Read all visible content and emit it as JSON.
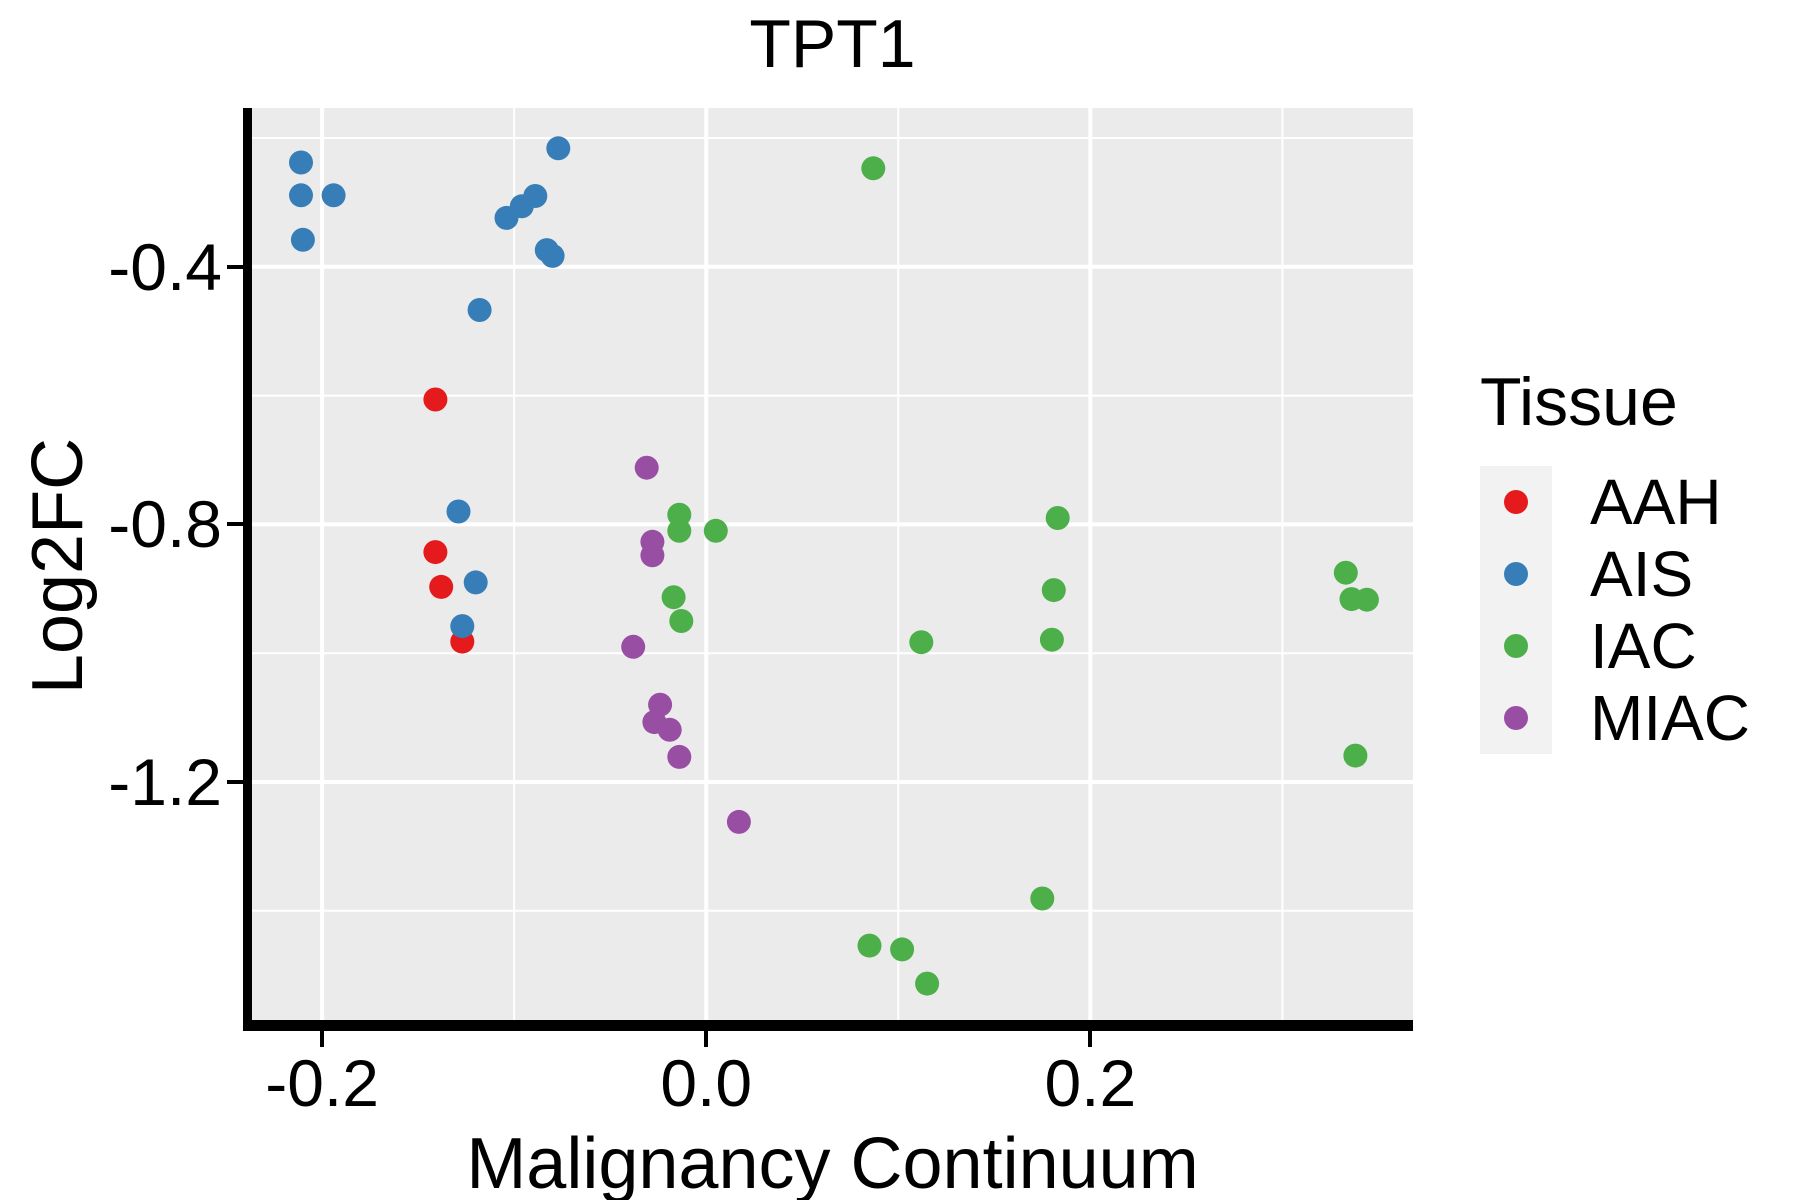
{
  "chart_data": {
    "type": "scatter",
    "title": "TPT1",
    "xlabel": "Malignancy Continuum",
    "ylabel": "Log2FC",
    "legend_title": "Tissue",
    "legend_position": "right",
    "grid": true,
    "panel_background": "#EBEBEB",
    "gridline_color": "#FFFFFF",
    "axis": {
      "xlim": [
        -0.2365,
        0.368
      ],
      "ylim": [
        -1.5696,
        -0.1534
      ],
      "x_ticks": [
        {
          "value": -0.2,
          "label": "-0.2"
        },
        {
          "value": 0.0,
          "label": "0.0"
        },
        {
          "value": 0.2,
          "label": "0.2"
        }
      ],
      "y_ticks": [
        {
          "value": -0.4,
          "label": "-0.4"
        },
        {
          "value": -0.8,
          "label": "-0.8"
        },
        {
          "value": -1.2,
          "label": "-1.2"
        }
      ],
      "x_minor": [
        -0.1,
        0.1,
        0.3
      ],
      "y_minor": [
        -0.2,
        -0.6,
        -1.0,
        -1.4
      ]
    },
    "series": [
      {
        "name": "AAH",
        "color": "#E41A1C",
        "points": [
          [
            -0.141,
            -0.606
          ],
          [
            -0.141,
            -0.843
          ],
          [
            -0.138,
            -0.897
          ],
          [
            -0.127,
            -0.982
          ]
        ]
      },
      {
        "name": "AIS",
        "color": "#377EB8",
        "points": [
          [
            -0.211,
            -0.238
          ],
          [
            -0.211,
            -0.289
          ],
          [
            -0.194,
            -0.289
          ],
          [
            -0.21,
            -0.358
          ],
          [
            -0.077,
            -0.216
          ],
          [
            -0.104,
            -0.324
          ],
          [
            -0.096,
            -0.306
          ],
          [
            -0.089,
            -0.29
          ],
          [
            -0.083,
            -0.374
          ],
          [
            -0.08,
            -0.383
          ],
          [
            -0.118,
            -0.467
          ],
          [
            -0.129,
            -0.78
          ],
          [
            -0.12,
            -0.89
          ],
          [
            -0.127,
            -0.958
          ]
        ]
      },
      {
        "name": "IAC",
        "color": "#4DAF4A",
        "points": [
          [
            0.087,
            -0.247
          ],
          [
            -0.014,
            -0.785
          ],
          [
            -0.014,
            -0.81
          ],
          [
            0.005,
            -0.81
          ],
          [
            -0.017,
            -0.913
          ],
          [
            -0.013,
            -0.95
          ],
          [
            0.112,
            -0.983
          ],
          [
            0.183,
            -0.79
          ],
          [
            0.181,
            -0.902
          ],
          [
            0.18,
            -0.979
          ],
          [
            0.333,
            -0.875
          ],
          [
            0.336,
            -0.916
          ],
          [
            0.344,
            -0.917
          ],
          [
            0.338,
            -1.159
          ],
          [
            0.175,
            -1.381
          ],
          [
            0.085,
            -1.454
          ],
          [
            0.102,
            -1.46
          ],
          [
            0.115,
            -1.513
          ]
        ]
      },
      {
        "name": "MIAC",
        "color": "#984EA3",
        "points": [
          [
            -0.031,
            -0.712
          ],
          [
            -0.028,
            -0.827
          ],
          [
            -0.028,
            -0.848
          ],
          [
            -0.038,
            -0.99
          ],
          [
            -0.024,
            -1.08
          ],
          [
            -0.027,
            -1.107
          ],
          [
            -0.019,
            -1.119
          ],
          [
            -0.014,
            -1.161
          ],
          [
            0.017,
            -1.262
          ]
        ]
      }
    ]
  },
  "legend": {
    "title": "Tissue",
    "items": [
      {
        "label": "AAH",
        "color": "#E41A1C"
      },
      {
        "label": "AIS",
        "color": "#377EB8"
      },
      {
        "label": "IAC",
        "color": "#4DAF4A"
      },
      {
        "label": "MIAC",
        "color": "#984EA3"
      }
    ]
  }
}
